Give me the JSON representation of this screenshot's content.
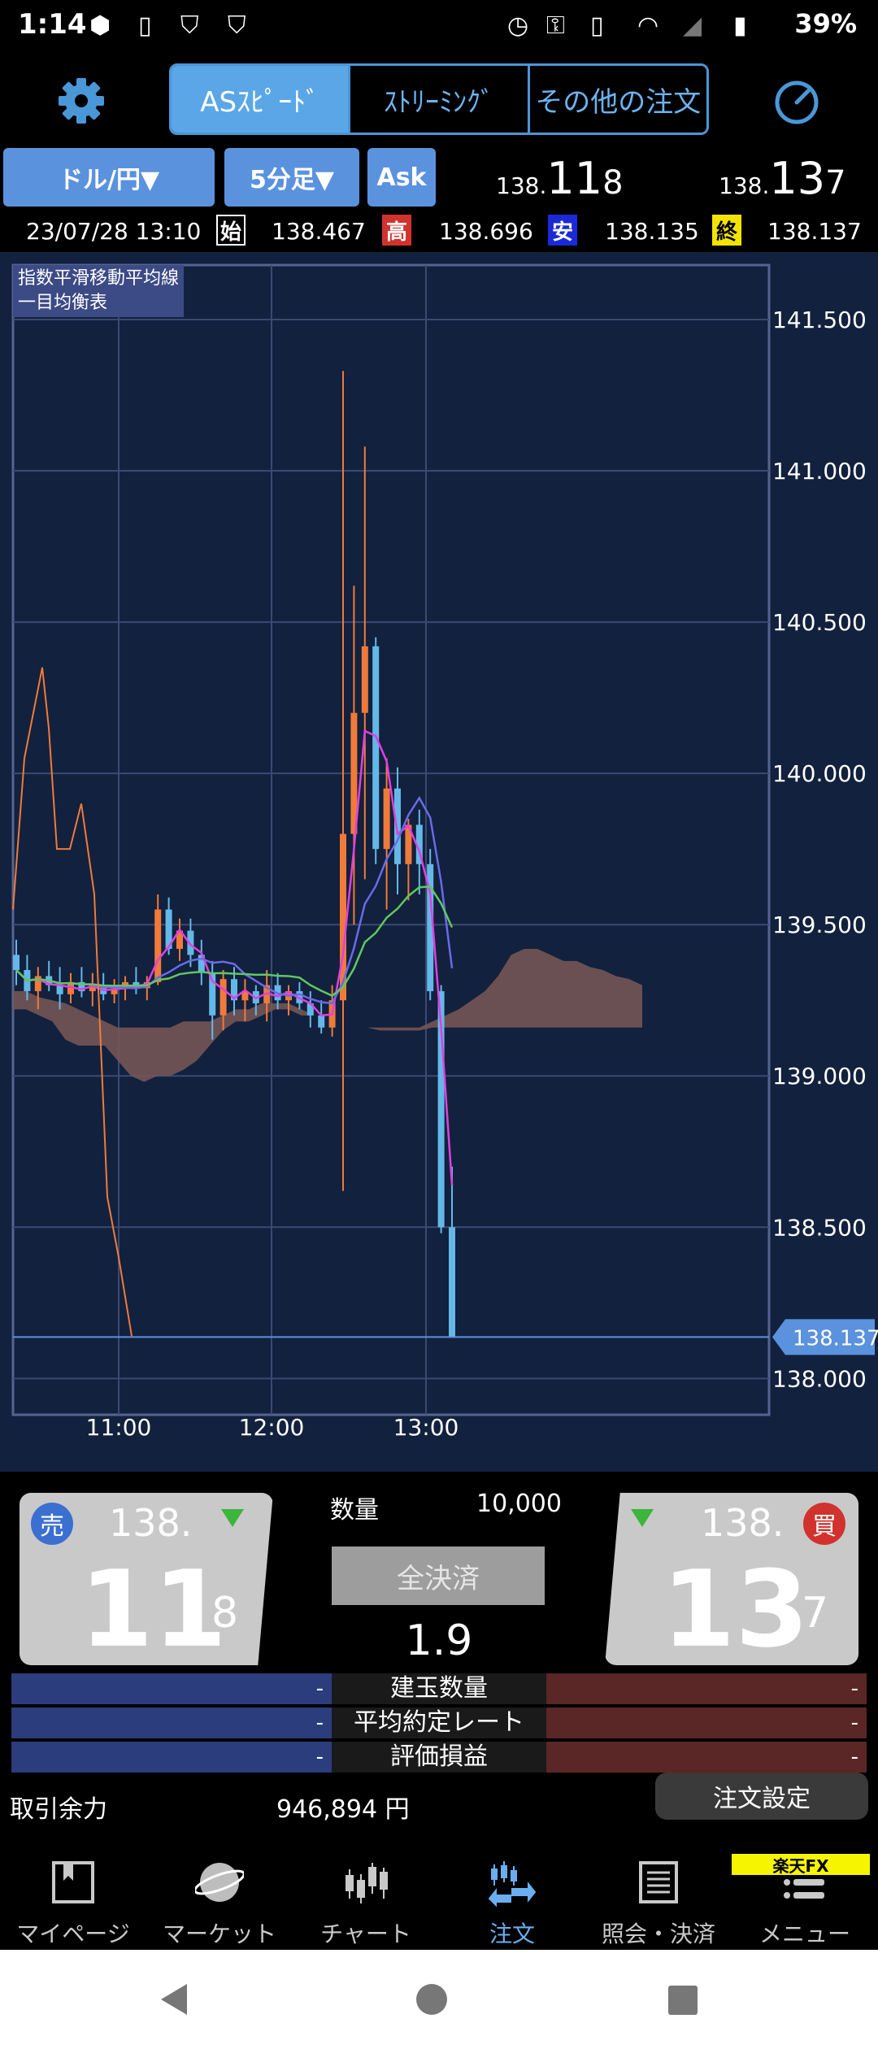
{
  "status_bar": {
    "time": "1:14",
    "battery": "39%"
  },
  "mode_tabs": [
    "ASｽﾋﾟｰﾄﾞ",
    "ｽﾄﾘｰﾐﾝｸﾞ",
    "その他の注文"
  ],
  "selectors": {
    "pair": "ドル/円▼",
    "timeframe": "5分足▼",
    "ask": "Ask"
  },
  "header_prices": {
    "bid": {
      "prefix": "138.",
      "big": "11",
      "small": "8"
    },
    "ask": {
      "prefix": "138.",
      "big": "13",
      "small": "7"
    }
  },
  "ohlc": {
    "datetime": "23/07/28 13:10",
    "open_tag": "始",
    "open": "138.467",
    "high_tag": "高",
    "high": "138.696",
    "low_tag": "安",
    "low": "138.135",
    "close_tag": "終",
    "close": "138.137",
    "colors": {
      "open": "#000000",
      "high": "#d2322d",
      "low": "#1a2ad8",
      "close": "#f2e400"
    }
  },
  "indicators": [
    "指数平滑移動平均線",
    "一目均衡表"
  ],
  "chart_data": {
    "type": "candlestick",
    "y_ticks": [
      "141.500",
      "141.000",
      "140.500",
      "140.000",
      "139.500",
      "139.000",
      "138.500",
      "138.000"
    ],
    "ylim": [
      137.88,
      141.68
    ],
    "x_ticks": [
      "11:00",
      "12:00",
      "13:00"
    ],
    "current_price_label": "138.137",
    "current_price": 138.137,
    "up_color": "#f07a3a",
    "down_color": "#64b8e8",
    "candles": [
      {
        "o": 139.4,
        "h": 139.45,
        "l": 139.3,
        "c": 139.35
      },
      {
        "o": 139.35,
        "h": 139.4,
        "l": 139.25,
        "c": 139.28
      },
      {
        "o": 139.28,
        "h": 139.36,
        "l": 139.22,
        "c": 139.33
      },
      {
        "o": 139.33,
        "h": 139.38,
        "l": 139.28,
        "c": 139.3
      },
      {
        "o": 139.3,
        "h": 139.36,
        "l": 139.22,
        "c": 139.27
      },
      {
        "o": 139.27,
        "h": 139.34,
        "l": 139.24,
        "c": 139.31
      },
      {
        "o": 139.31,
        "h": 139.36,
        "l": 139.26,
        "c": 139.28
      },
      {
        "o": 139.28,
        "h": 139.34,
        "l": 139.23,
        "c": 139.3
      },
      {
        "o": 139.3,
        "h": 139.34,
        "l": 139.25,
        "c": 139.27
      },
      {
        "o": 139.27,
        "h": 139.32,
        "l": 139.24,
        "c": 139.29
      },
      {
        "o": 139.29,
        "h": 139.33,
        "l": 139.25,
        "c": 139.31
      },
      {
        "o": 139.31,
        "h": 139.36,
        "l": 139.27,
        "c": 139.29
      },
      {
        "o": 139.29,
        "h": 139.33,
        "l": 139.25,
        "c": 139.31
      },
      {
        "o": 139.31,
        "h": 139.6,
        "l": 139.3,
        "c": 139.55
      },
      {
        "o": 139.55,
        "h": 139.59,
        "l": 139.4,
        "c": 139.42
      },
      {
        "o": 139.42,
        "h": 139.52,
        "l": 139.38,
        "c": 139.48
      },
      {
        "o": 139.48,
        "h": 139.52,
        "l": 139.36,
        "c": 139.4
      },
      {
        "o": 139.4,
        "h": 139.45,
        "l": 139.3,
        "c": 139.34
      },
      {
        "o": 139.34,
        "h": 139.38,
        "l": 139.12,
        "c": 139.2
      },
      {
        "o": 139.2,
        "h": 139.35,
        "l": 139.15,
        "c": 139.32
      },
      {
        "o": 139.32,
        "h": 139.36,
        "l": 139.2,
        "c": 139.25
      },
      {
        "o": 139.25,
        "h": 139.32,
        "l": 139.18,
        "c": 139.28
      },
      {
        "o": 139.28,
        "h": 139.3,
        "l": 139.2,
        "c": 139.24
      },
      {
        "o": 139.24,
        "h": 139.35,
        "l": 139.18,
        "c": 139.3
      },
      {
        "o": 139.3,
        "h": 139.34,
        "l": 139.22,
        "c": 139.25
      },
      {
        "o": 139.25,
        "h": 139.3,
        "l": 139.2,
        "c": 139.28
      },
      {
        "o": 139.28,
        "h": 139.31,
        "l": 139.22,
        "c": 139.24
      },
      {
        "o": 139.24,
        "h": 139.28,
        "l": 139.16,
        "c": 139.2
      },
      {
        "o": 139.2,
        "h": 139.25,
        "l": 139.14,
        "c": 139.16
      },
      {
        "o": 139.16,
        "h": 139.3,
        "l": 139.13,
        "c": 139.25
      },
      {
        "o": 139.25,
        "h": 141.33,
        "l": 138.62,
        "c": 139.8
      },
      {
        "o": 139.8,
        "h": 140.62,
        "l": 139.5,
        "c": 140.2
      },
      {
        "o": 140.2,
        "h": 141.08,
        "l": 139.65,
        "c": 140.42
      },
      {
        "o": 140.42,
        "h": 140.45,
        "l": 139.7,
        "c": 139.75
      },
      {
        "o": 139.75,
        "h": 140.05,
        "l": 139.55,
        "c": 139.95
      },
      {
        "o": 139.95,
        "h": 140.02,
        "l": 139.6,
        "c": 139.7
      },
      {
        "o": 139.7,
        "h": 139.85,
        "l": 139.58,
        "c": 139.83
      },
      {
        "o": 139.83,
        "h": 139.88,
        "l": 139.6,
        "c": 139.7
      },
      {
        "o": 139.7,
        "h": 139.75,
        "l": 139.25,
        "c": 139.28
      },
      {
        "o": 139.28,
        "h": 139.3,
        "l": 138.48,
        "c": 138.5
      },
      {
        "o": 138.5,
        "h": 138.7,
        "l": 138.135,
        "c": 138.137
      }
    ]
  },
  "trade": {
    "sell_badge": "売",
    "buy_badge": "買",
    "sell": {
      "prefix": "138.",
      "big": "11",
      "small": "8"
    },
    "buy": {
      "prefix": "138.",
      "big": "13",
      "small": "7"
    },
    "qty_label": "数量",
    "qty_value": "10,000",
    "close_all": "全決済",
    "spread": "1.9",
    "rows": [
      {
        "label": "建玉数量",
        "left": "-",
        "right": "-"
      },
      {
        "label": "平均約定レート",
        "left": "-",
        "right": "-"
      },
      {
        "label": "評価損益",
        "left": "-",
        "right": "-"
      }
    ],
    "margin_label": "取引余力",
    "margin_value": "946,894 円",
    "order_settings": "注文設定"
  },
  "nav": {
    "items": [
      "マイページ",
      "マーケット",
      "チャート",
      "注文",
      "照会・決済",
      "メニュー"
    ],
    "rakuten": "楽天FX"
  }
}
